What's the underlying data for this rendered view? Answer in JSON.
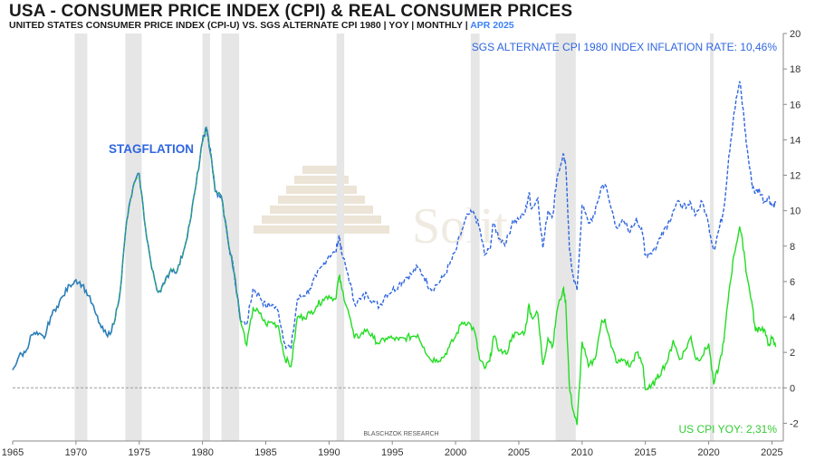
{
  "header": {
    "title": "USA - CONSUMER PRICE INDEX (CPI) & REAL CONSUMER PRICES",
    "subtitle_main": "UNITED STATES CONSUMER PRICE INDEX (CPI-U) VS. SGS ALTERNATE CPI 1980  | YOY | MONTHLY |",
    "subtitle_date": "APR 2025"
  },
  "colors": {
    "cpi": "#22dd22",
    "sgs": "#2f66e0",
    "early": "#2a7fb8",
    "recession": "#e6e6e6",
    "zero": "#9a9a9a",
    "label_blue": "#2f66e0",
    "label_green": "#33cc33"
  },
  "chart_data": {
    "type": "line",
    "title": "USA - CONSUMER PRICE INDEX (CPI) & REAL CONSUMER PRICES",
    "xlabel": "",
    "ylabel": "",
    "xlim": [
      1965,
      2025.9
    ],
    "ylim": [
      -3,
      20
    ],
    "x_ticks": [
      1965,
      1970,
      1975,
      1980,
      1985,
      1990,
      1995,
      2000,
      2005,
      2010,
      2015,
      2020,
      2025
    ],
    "y_ticks": [
      -2,
      0,
      2,
      4,
      6,
      8,
      10,
      12,
      14,
      16,
      18,
      20
    ],
    "recessions": [
      [
        1969.9,
        1970.9
      ],
      [
        1973.9,
        1975.2
      ],
      [
        1980.0,
        1980.6
      ],
      [
        1981.5,
        1982.9
      ],
      [
        1990.6,
        1991.2
      ],
      [
        2001.2,
        2001.9
      ],
      [
        2007.9,
        2009.5
      ],
      [
        2020.1,
        2020.4
      ]
    ],
    "zero_line": 0,
    "annotations": {
      "stagflation": "STAGFLATION",
      "sgs_label": "SGS ALTERNATE CPI 1980 INDEX INFLATION RATE: 10,46%",
      "cpi_label": "US CPI YOY: 2,31%",
      "source": "BLASCHZOK RESEARCH",
      "watermark": "Solit"
    },
    "series": [
      {
        "name": "US CPI YOY (CPI-U)",
        "style": "solid",
        "x": [
          1965.0,
          1965.5,
          1966.0,
          1966.5,
          1967.0,
          1967.5,
          1968.0,
          1968.5,
          1969.0,
          1969.5,
          1970.0,
          1970.5,
          1971.0,
          1971.5,
          1972.0,
          1972.5,
          1973.0,
          1973.5,
          1974.0,
          1974.5,
          1975.0,
          1975.5,
          1976.0,
          1976.5,
          1977.0,
          1977.5,
          1978.0,
          1978.5,
          1979.0,
          1979.5,
          1980.0,
          1980.3,
          1980.7,
          1981.0,
          1981.5,
          1982.0,
          1982.5,
          1983.0,
          1983.5,
          1984.0,
          1984.5,
          1985.0,
          1985.5,
          1986.0,
          1986.5,
          1987.0,
          1987.5,
          1988.0,
          1988.5,
          1989.0,
          1989.5,
          1990.0,
          1990.5,
          1990.8,
          1991.0,
          1991.5,
          1992.0,
          1992.5,
          1993.0,
          1993.5,
          1994.0,
          1994.5,
          1995.0,
          1995.5,
          1996.0,
          1996.5,
          1997.0,
          1997.5,
          1998.0,
          1998.5,
          1999.0,
          1999.5,
          2000.0,
          2000.5,
          2001.0,
          2001.5,
          2001.9,
          2002.3,
          2002.7,
          2003.0,
          2003.5,
          2004.0,
          2004.5,
          2005.0,
          2005.5,
          2005.8,
          2006.0,
          2006.5,
          2006.9,
          2007.3,
          2007.7,
          2008.0,
          2008.5,
          2008.7,
          2009.0,
          2009.3,
          2009.6,
          2010.0,
          2010.5,
          2011.0,
          2011.5,
          2011.8,
          2012.3,
          2012.8,
          2013.3,
          2013.8,
          2014.3,
          2014.8,
          2015.0,
          2015.4,
          2015.9,
          2016.3,
          2016.8,
          2017.2,
          2017.7,
          2018.2,
          2018.6,
          2019.0,
          2019.5,
          2020.0,
          2020.4,
          2020.8,
          2021.2,
          2021.6,
          2022.0,
          2022.45,
          2022.8,
          2023.0,
          2023.4,
          2023.7,
          2024.0,
          2024.4,
          2024.7,
          2025.0,
          2025.3
        ],
        "values": [
          1.0,
          1.8,
          2.0,
          3.0,
          3.0,
          2.8,
          4.0,
          4.6,
          5.2,
          5.8,
          6.1,
          5.8,
          5.2,
          4.3,
          3.4,
          2.9,
          3.6,
          5.5,
          9.4,
          11.3,
          12.1,
          9.0,
          6.7,
          5.4,
          5.9,
          6.7,
          6.6,
          7.7,
          9.3,
          11.5,
          13.9,
          14.7,
          13.0,
          11.1,
          10.8,
          8.4,
          6.5,
          3.8,
          2.4,
          4.5,
          4.2,
          3.6,
          3.7,
          3.5,
          1.7,
          1.2,
          4.0,
          4.0,
          4.2,
          4.6,
          5.0,
          5.2,
          5.0,
          6.3,
          5.6,
          4.4,
          2.8,
          3.0,
          3.3,
          2.8,
          2.5,
          2.8,
          2.8,
          2.7,
          2.8,
          2.9,
          3.0,
          2.3,
          1.6,
          1.6,
          1.7,
          2.3,
          2.9,
          3.7,
          3.7,
          3.2,
          1.6,
          1.1,
          1.5,
          2.9,
          2.1,
          1.9,
          3.0,
          3.0,
          3.2,
          4.7,
          4.0,
          4.2,
          1.3,
          2.8,
          2.4,
          4.3,
          5.6,
          4.9,
          0.0,
          -1.3,
          -2.1,
          2.6,
          1.2,
          1.6,
          3.6,
          3.9,
          2.3,
          1.4,
          1.6,
          1.2,
          2.0,
          1.3,
          -0.1,
          0.0,
          0.5,
          1.0,
          1.6,
          2.7,
          1.6,
          2.2,
          2.9,
          1.6,
          1.8,
          2.5,
          0.2,
          1.2,
          2.6,
          5.4,
          7.5,
          9.1,
          7.7,
          6.4,
          4.9,
          3.2,
          3.4,
          3.3,
          2.4,
          2.8,
          2.3
        ]
      },
      {
        "name": "SGS Alternate CPI 1980",
        "style": "dashed",
        "x": [
          1980.0,
          1980.3,
          1980.7,
          1981.0,
          1981.5,
          1982.0,
          1982.5,
          1983.0,
          1983.5,
          1984.0,
          1984.5,
          1985.0,
          1985.5,
          1986.0,
          1986.5,
          1987.0,
          1987.5,
          1988.0,
          1988.5,
          1989.0,
          1989.5,
          1990.0,
          1990.5,
          1990.8,
          1991.0,
          1991.5,
          1992.0,
          1992.5,
          1993.0,
          1993.5,
          1994.0,
          1994.5,
          1995.0,
          1995.5,
          1996.0,
          1996.5,
          1997.0,
          1997.5,
          1998.0,
          1998.5,
          1999.0,
          1999.5,
          2000.0,
          2000.5,
          2001.0,
          2001.5,
          2001.9,
          2002.3,
          2002.7,
          2003.0,
          2003.5,
          2004.0,
          2004.5,
          2005.0,
          2005.5,
          2005.8,
          2006.0,
          2006.5,
          2006.9,
          2007.3,
          2007.7,
          2008.0,
          2008.5,
          2008.7,
          2009.0,
          2009.3,
          2009.6,
          2010.0,
          2010.5,
          2011.0,
          2011.5,
          2011.8,
          2012.3,
          2012.8,
          2013.3,
          2013.8,
          2014.3,
          2014.8,
          2015.0,
          2015.4,
          2015.9,
          2016.3,
          2016.8,
          2017.2,
          2017.7,
          2018.2,
          2018.6,
          2019.0,
          2019.5,
          2020.0,
          2020.4,
          2020.8,
          2021.2,
          2021.6,
          2022.0,
          2022.45,
          2022.8,
          2023.0,
          2023.4,
          2023.7,
          2024.0,
          2024.4,
          2024.7,
          2025.0,
          2025.3
        ],
        "values": [
          13.9,
          14.7,
          13.0,
          11.1,
          10.8,
          8.4,
          6.5,
          3.8,
          3.6,
          5.6,
          5.2,
          4.6,
          4.7,
          4.3,
          2.5,
          2.2,
          5.0,
          5.2,
          5.6,
          6.3,
          6.9,
          7.5,
          7.6,
          8.6,
          7.6,
          6.4,
          4.8,
          5.0,
          5.3,
          4.9,
          4.6,
          5.3,
          5.5,
          5.8,
          6.2,
          6.4,
          6.8,
          6.3,
          5.6,
          5.8,
          6.2,
          6.9,
          7.7,
          8.9,
          9.8,
          9.8,
          9.0,
          7.5,
          7.8,
          9.3,
          8.4,
          8.2,
          9.4,
          9.5,
          9.9,
          11.0,
          10.1,
          10.7,
          7.9,
          10.0,
          9.8,
          11.8,
          13.2,
          12.6,
          7.8,
          6.3,
          5.5,
          10.3,
          9.3,
          9.8,
          11.3,
          11.5,
          10.1,
          9.0,
          9.4,
          8.8,
          9.6,
          8.6,
          7.5,
          7.6,
          8.0,
          8.8,
          9.3,
          10.0,
          10.5,
          10.1,
          10.4,
          9.8,
          10.5,
          9.2,
          7.8,
          8.9,
          10.1,
          13.1,
          15.5,
          17.3,
          15.2,
          13.7,
          11.6,
          11.0,
          11.2,
          10.5,
          10.8,
          10.3,
          10.46
        ]
      }
    ]
  }
}
